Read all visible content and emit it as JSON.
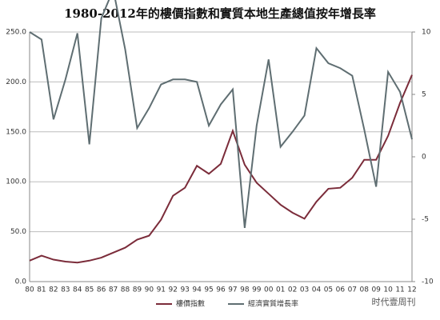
{
  "chart_data": {
    "type": "line",
    "title": "1980-2012年的樓價指數和實質本地生產總值按年增長率",
    "categories": [
      "80",
      "81",
      "82",
      "83",
      "84",
      "85",
      "86",
      "87",
      "88",
      "89",
      "90",
      "91",
      "92",
      "93",
      "94",
      "95",
      "96",
      "97",
      "98",
      "99",
      "00",
      "01",
      "02",
      "03",
      "04",
      "05",
      "06",
      "07",
      "08",
      "09",
      "10",
      "11",
      "12"
    ],
    "series": [
      {
        "name": "樓價指數",
        "color": "#7b2c3a",
        "values": [
          21,
          26,
          22,
          20,
          19,
          21,
          24,
          29,
          34,
          42,
          46,
          62,
          86,
          94,
          116,
          108,
          118,
          151,
          117,
          99,
          88,
          77,
          69,
          63,
          80,
          93,
          94,
          104,
          122,
          122,
          146,
          179,
          207
        ]
      },
      {
        "name": "經濟實質增長率",
        "color": "#5f6e72",
        "axis": "y2",
        "values": [
          10.0,
          9.4,
          3.0,
          6.2,
          9.9,
          1.0,
          11.1,
          13.4,
          8.6,
          2.3,
          3.9,
          5.8,
          6.2,
          6.2,
          6.0,
          2.5,
          4.2,
          5.4,
          -5.7,
          2.5,
          7.8,
          0.8,
          2.0,
          3.3,
          8.7,
          7.5,
          7.1,
          6.5,
          2.2,
          -2.4,
          6.8,
          5.2,
          1.4
        ]
      }
    ],
    "ylim": [
      0,
      250
    ],
    "yticks": [
      {
        "value": 0,
        "label": "0.0"
      },
      {
        "value": 50,
        "label": "50.0"
      },
      {
        "value": 100,
        "label": "100.0"
      },
      {
        "value": 150,
        "label": "150.0"
      },
      {
        "value": 200,
        "label": "200.0"
      },
      {
        "value": 250,
        "label": "250.0"
      }
    ],
    "y2lim": [
      -10,
      10
    ],
    "y2ticks": [
      -10,
      -5,
      0,
      5,
      10
    ],
    "grid": true,
    "legend": "bottom",
    "watermark": "时代壹周刊"
  }
}
